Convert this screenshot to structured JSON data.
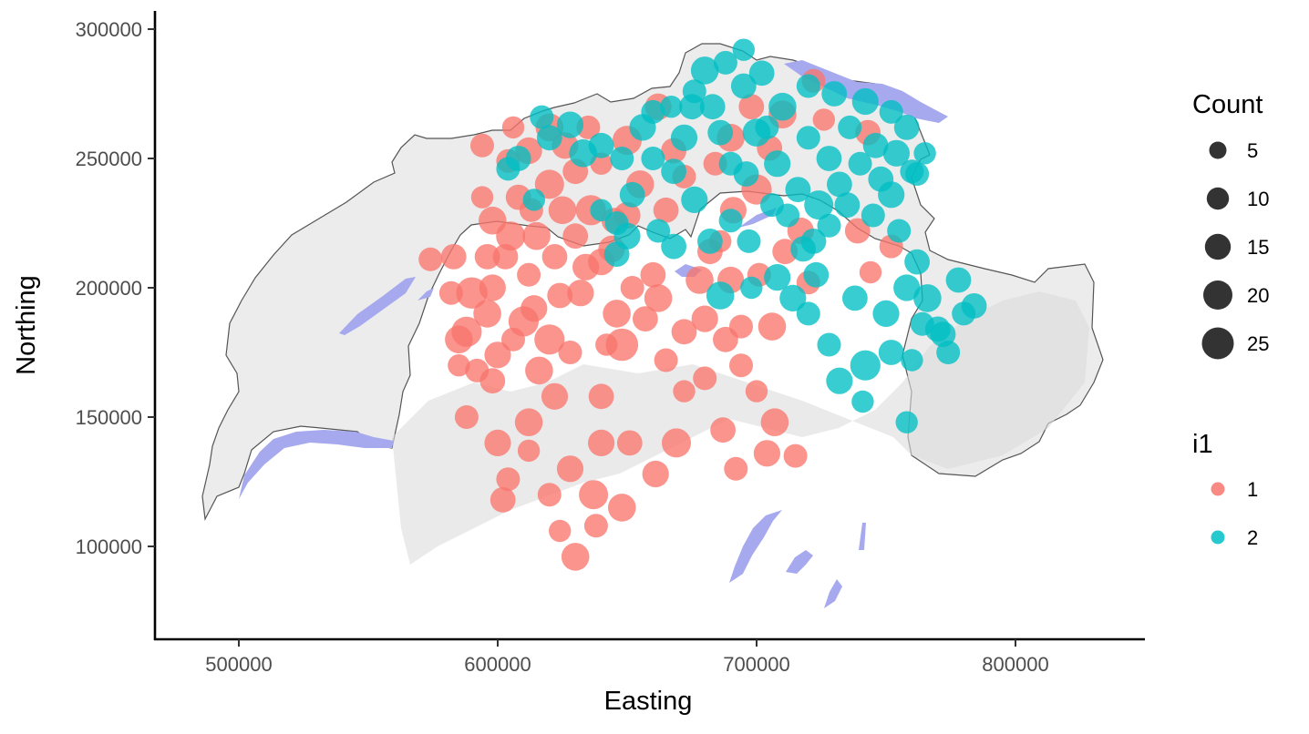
{
  "chart_data": {
    "type": "scatter",
    "title": "",
    "xlabel": "Easting",
    "ylabel": "Northing",
    "xlim": [
      470000,
      852000
    ],
    "ylim": [
      66000,
      306000
    ],
    "x_ticks": [
      500000,
      600000,
      700000,
      800000
    ],
    "y_ticks": [
      100000,
      150000,
      200000,
      250000,
      300000
    ],
    "grid": false,
    "background": "swiss relief map with lakes",
    "size_legend": {
      "title": "Count",
      "entries": [
        {
          "label": "5",
          "value": 5
        },
        {
          "label": "10",
          "value": 10
        },
        {
          "label": "15",
          "value": 15
        },
        {
          "label": "20",
          "value": 20
        },
        {
          "label": "25",
          "value": 25
        }
      ]
    },
    "color_legend": {
      "title": "i1",
      "entries": [
        {
          "label": "1",
          "color": "#F8766D"
        },
        {
          "label": "2",
          "color": "#00BFC4"
        }
      ]
    },
    "colors": {
      "group1": "#F8766D",
      "group2": "#00BFC4",
      "lake": "#a6a9ee",
      "map": "#ececec",
      "border": "#555555"
    },
    "series": [
      {
        "name": "1",
        "points": [
          [
            583,
            212,
            14
          ],
          [
            582,
            198,
            12
          ],
          [
            588,
            183,
            22
          ],
          [
            596,
            190,
            18
          ],
          [
            600,
            174,
            16
          ],
          [
            585,
            170,
            10
          ],
          [
            596,
            212,
            14
          ],
          [
            598,
            226,
            18
          ],
          [
            605,
            220,
            20
          ],
          [
            612,
            205,
            12
          ],
          [
            614,
            192,
            16
          ],
          [
            620,
            180,
            22
          ],
          [
            628,
            175,
            12
          ],
          [
            624,
            197,
            14
          ],
          [
            632,
            198,
            16
          ],
          [
            642,
            178,
            10
          ],
          [
            648,
            178,
            26
          ],
          [
            657,
            188,
            14
          ],
          [
            662,
            196,
            18
          ],
          [
            652,
            200,
            12
          ],
          [
            640,
            210,
            16
          ],
          [
            630,
            220,
            14
          ],
          [
            625,
            230,
            18
          ],
          [
            613,
            230,
            12
          ],
          [
            620,
            240,
            20
          ],
          [
            630,
            245,
            14
          ],
          [
            640,
            248,
            10
          ],
          [
            612,
            253,
            16
          ],
          [
            604,
            249,
            12
          ],
          [
            620,
            262,
            18
          ],
          [
            606,
            262,
            10
          ],
          [
            594,
            255,
            12
          ],
          [
            600,
            140,
            16
          ],
          [
            598,
            164,
            14
          ],
          [
            612,
            148,
            18
          ],
          [
            604,
            126,
            12
          ],
          [
            628,
            130,
            16
          ],
          [
            637,
            120,
            20
          ],
          [
            648,
            115,
            18
          ],
          [
            638,
            108,
            12
          ],
          [
            624,
            106,
            10
          ],
          [
            630,
            96,
            18
          ],
          [
            651,
            140,
            14
          ],
          [
            661,
            128,
            16
          ],
          [
            669,
            140,
            20
          ],
          [
            680,
            165,
            12
          ],
          [
            687,
            145,
            14
          ],
          [
            692,
            130,
            12
          ],
          [
            704,
            136,
            16
          ],
          [
            707,
            148,
            18
          ],
          [
            715,
            135,
            12
          ],
          [
            700,
            160,
            10
          ],
          [
            694,
            170,
            12
          ],
          [
            672,
            183,
            14
          ],
          [
            678,
            203,
            18
          ],
          [
            686,
            218,
            10
          ],
          [
            691,
            230,
            16
          ],
          [
            700,
            238,
            22
          ],
          [
            705,
            254,
            14
          ],
          [
            710,
            267,
            18
          ],
          [
            722,
            280,
            12
          ],
          [
            726,
            265,
            10
          ],
          [
            743,
            260,
            14
          ],
          [
            739,
            222,
            14
          ],
          [
            744,
            206,
            10
          ],
          [
            717,
            222,
            16
          ],
          [
            684,
            248,
            12
          ],
          [
            668,
            253,
            14
          ],
          [
            650,
            257,
            20
          ],
          [
            662,
            270,
            16
          ],
          [
            655,
            240,
            18
          ],
          [
            645,
            226,
            14
          ],
          [
            636,
            230,
            22
          ],
          [
            635,
            262,
            12
          ],
          [
            682,
            214,
            14
          ],
          [
            690,
            203,
            16
          ],
          [
            701,
            205,
            12
          ],
          [
            711,
            214,
            14
          ],
          [
            706,
            185,
            18
          ],
          [
            694,
            185,
            12
          ],
          [
            680,
            188,
            16
          ],
          [
            665,
            172,
            12
          ],
          [
            672,
            160,
            10
          ],
          [
            688,
            180,
            14
          ],
          [
            598,
            200,
            16
          ],
          [
            606,
            180,
            12
          ],
          [
            616,
            168,
            18
          ],
          [
            622,
            158,
            16
          ],
          [
            640,
            158,
            14
          ],
          [
            588,
            150,
            12
          ],
          [
            602,
            118,
            14
          ],
          [
            612,
            137,
            10
          ],
          [
            640,
            140,
            16
          ],
          [
            620,
            120,
            12
          ],
          [
            634,
            208,
            16
          ],
          [
            646,
            190,
            18
          ],
          [
            660,
            205,
            14
          ],
          [
            608,
            235,
            14
          ],
          [
            594,
            235,
            10
          ],
          [
            626,
            255,
            16
          ],
          [
            615,
            220,
            18
          ],
          [
            650,
            228,
            16
          ],
          [
            665,
            230,
            14
          ],
          [
            672,
            243,
            12
          ],
          [
            690,
            258,
            18
          ],
          [
            698,
            270,
            14
          ],
          [
            720,
            202,
            12
          ],
          [
            752,
            216,
            12
          ],
          [
            585,
            180,
            18
          ],
          [
            592,
            168,
            12
          ],
          [
            610,
            187,
            22
          ],
          [
            622,
            212,
            14
          ],
          [
            644,
            215,
            16
          ],
          [
            574,
            211,
            12
          ],
          [
            590,
            198,
            24
          ],
          [
            603,
            212,
            14
          ]
        ]
      },
      {
        "name": "2",
        "points": [
          [
            617,
            266,
            12
          ],
          [
            620,
            258,
            14
          ],
          [
            628,
            263,
            16
          ],
          [
            633,
            252,
            18
          ],
          [
            640,
            255,
            14
          ],
          [
            648,
            250,
            12
          ],
          [
            656,
            262,
            16
          ],
          [
            667,
            270,
            10
          ],
          [
            675,
            270,
            14
          ],
          [
            680,
            284,
            18
          ],
          [
            688,
            287,
            12
          ],
          [
            695,
            292,
            10
          ],
          [
            702,
            283,
            14
          ],
          [
            710,
            270,
            18
          ],
          [
            720,
            278,
            12
          ],
          [
            730,
            275,
            14
          ],
          [
            742,
            272,
            16
          ],
          [
            752,
            268,
            12
          ],
          [
            758,
            262,
            14
          ],
          [
            765,
            252,
            10
          ],
          [
            760,
            245,
            12
          ],
          [
            752,
            236,
            16
          ],
          [
            745,
            228,
            12
          ],
          [
            735,
            232,
            14
          ],
          [
            728,
            224,
            12
          ],
          [
            718,
            215,
            14
          ],
          [
            708,
            204,
            16
          ],
          [
            697,
            218,
            12
          ],
          [
            690,
            226,
            12
          ],
          [
            682,
            218,
            14
          ],
          [
            676,
            234,
            16
          ],
          [
            668,
            245,
            14
          ],
          [
            660,
            250,
            12
          ],
          [
            652,
            236,
            14
          ],
          [
            646,
            225,
            12
          ],
          [
            640,
            230,
            10
          ],
          [
            660,
            268,
            12
          ],
          [
            672,
            258,
            16
          ],
          [
            686,
            260,
            14
          ],
          [
            700,
            260,
            18
          ],
          [
            708,
            248,
            16
          ],
          [
            716,
            238,
            14
          ],
          [
            724,
            232,
            20
          ],
          [
            732,
            240,
            14
          ],
          [
            740,
            248,
            12
          ],
          [
            748,
            242,
            14
          ],
          [
            755,
            222,
            12
          ],
          [
            762,
            210,
            14
          ],
          [
            758,
            200,
            16
          ],
          [
            766,
            196,
            18
          ],
          [
            778,
            203,
            14
          ],
          [
            784,
            193,
            14
          ],
          [
            770,
            184,
            14
          ],
          [
            774,
            175,
            12
          ],
          [
            760,
            172,
            10
          ],
          [
            752,
            175,
            14
          ],
          [
            742,
            170,
            22
          ],
          [
            732,
            164,
            16
          ],
          [
            741,
            156,
            10
          ],
          [
            758,
            148,
            10
          ],
          [
            728,
            178,
            12
          ],
          [
            723,
            205,
            14
          ],
          [
            714,
            196,
            16
          ],
          [
            686,
            197,
            18
          ],
          [
            696,
            244,
            14
          ],
          [
            706,
            232,
            12
          ],
          [
            720,
            258,
            12
          ],
          [
            728,
            250,
            14
          ],
          [
            736,
            262,
            12
          ],
          [
            746,
            255,
            14
          ],
          [
            754,
            252,
            16
          ],
          [
            762,
            244,
            12
          ],
          [
            695,
            278,
            14
          ],
          [
            704,
            262,
            12
          ],
          [
            683,
            270,
            14
          ],
          [
            676,
            276,
            12
          ],
          [
            690,
            248,
            12
          ],
          [
            608,
            250,
            14
          ],
          [
            604,
            246,
            12
          ],
          [
            614,
            234,
            10
          ],
          [
            646,
            213,
            14
          ],
          [
            650,
            220,
            16
          ],
          [
            662,
            222,
            12
          ],
          [
            668,
            216,
            14
          ],
          [
            698,
            200,
            10
          ],
          [
            720,
            190,
            12
          ],
          [
            738,
            196,
            14
          ],
          [
            750,
            190,
            16
          ],
          [
            764,
            186,
            12
          ],
          [
            780,
            190,
            12
          ],
          [
            772,
            182,
            14
          ],
          [
            712,
            228,
            12
          ],
          [
            722,
            218,
            14
          ]
        ]
      }
    ]
  }
}
